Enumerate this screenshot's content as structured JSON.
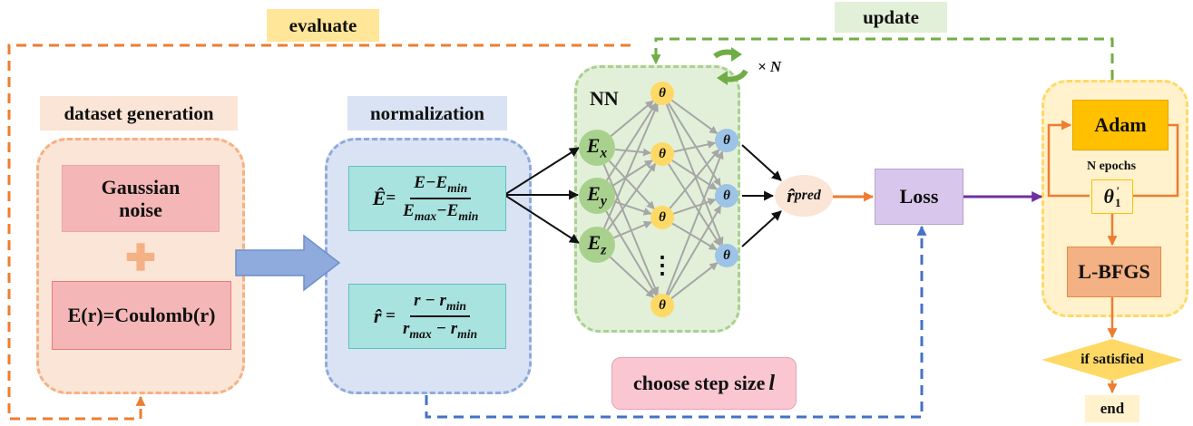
{
  "labels": {
    "evaluate": "evaluate",
    "update": "update",
    "dataset_generation": "dataset generation",
    "normalization": "normalization",
    "nn": "NN",
    "times_n": "× N",
    "gaussian_noise_line1": "Gaussian",
    "gaussian_noise_line2": "noise",
    "plus": "✚",
    "coulomb": "E(r)=Coulomb(r)",
    "loss": "Loss",
    "adam": "Adam",
    "n_epochs": "N epochs",
    "lbfgs": "L-BFGS",
    "if_satisfied": "if satisfied",
    "end": "end",
    "choose_step": "choose step size ",
    "step_symbol": "l"
  },
  "equations": {
    "e_hat": "Ê",
    "e_num": "E−E",
    "e_num_sub": "min",
    "e_den_a": "E",
    "e_den_a_sub": "max",
    "e_den_b": "−E",
    "e_den_b_sub": "min",
    "r_hat": "r̂",
    "r_num": "r − r",
    "r_num_sub": "min",
    "r_den_a": "r",
    "r_den_a_sub": "max",
    "r_den_b": " − r",
    "r_den_b_sub": "min"
  },
  "nodes": {
    "inputs": [
      {
        "base": "E",
        "sub": "x"
      },
      {
        "base": "E",
        "sub": "y"
      },
      {
        "base": "E",
        "sub": "z"
      }
    ],
    "theta": "θ",
    "dots": "⋮",
    "output_base": "r̂",
    "output_sub": "pred",
    "theta_prime_base": "θ",
    "theta_prime_sup": "′",
    "theta_prime_sub": "1"
  },
  "colors": {
    "evaluate_line": "#ed7d31",
    "update_line": "#70ad47",
    "step_line": "#4472c4",
    "loss_arrow": "#7030a0",
    "input_node": "#a9d18e",
    "theta_node": "#ffd966",
    "hidden2_node": "#9dc3e6",
    "output_node": "#fbe5d6"
  }
}
